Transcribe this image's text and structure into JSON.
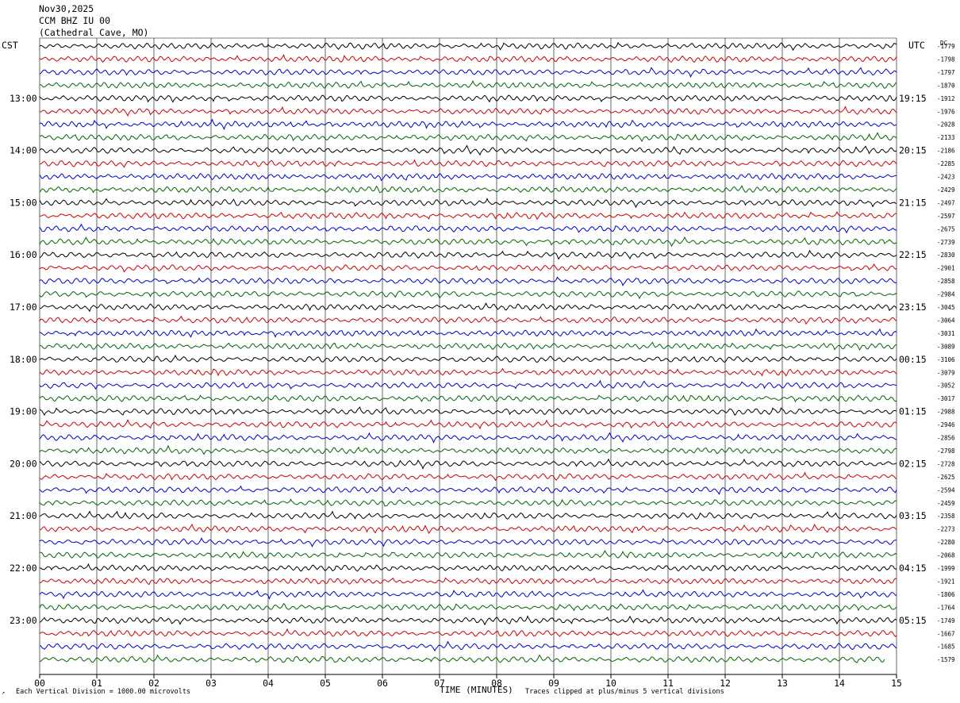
{
  "header": {
    "date": "Nov30,2025",
    "station": "CCM BHZ IU 00",
    "location": "(Cathedral Cave, MO)"
  },
  "left_zone_label": "CST",
  "right_zone_label": "UTC",
  "dc_label": "DC",
  "footer": {
    "scale_note": "Each Vertical Division = 1000.00 microvolts",
    "xlabel": "TIME (MINUTES)",
    "clip_note": "Traces clipped at plus/minus 5 vertical divisions"
  },
  "colors": {
    "trace_cycle": [
      "#000000",
      "#cc0000",
      "#0000cc",
      "#006600"
    ],
    "grid": "#000000",
    "background": "#ffffff"
  },
  "chart_data": {
    "type": "helicorder",
    "x": {
      "min": 0,
      "max": 15,
      "tick_labels": [
        "00",
        "01",
        "02",
        "03",
        "04",
        "05",
        "06",
        "07",
        "08",
        "09",
        "10",
        "11",
        "12",
        "13",
        "14",
        "15"
      ]
    },
    "rows_per_hour": 4,
    "left_hour_labels": [
      {
        "row": 4,
        "label": "13:00"
      },
      {
        "row": 8,
        "label": "14:00"
      },
      {
        "row": 12,
        "label": "15:00"
      },
      {
        "row": 16,
        "label": "16:00"
      },
      {
        "row": 20,
        "label": "17:00"
      },
      {
        "row": 24,
        "label": "18:00"
      },
      {
        "row": 28,
        "label": "19:00"
      },
      {
        "row": 32,
        "label": "20:00"
      },
      {
        "row": 36,
        "label": "21:00"
      },
      {
        "row": 40,
        "label": "22:00"
      },
      {
        "row": 44,
        "label": "23:00"
      }
    ],
    "right_hour_labels": [
      {
        "row": 4,
        "label": "19:15"
      },
      {
        "row": 8,
        "label": "20:15"
      },
      {
        "row": 12,
        "label": "21:15"
      },
      {
        "row": 16,
        "label": "22:15"
      },
      {
        "row": 20,
        "label": "23:15"
      },
      {
        "row": 24,
        "label": "00:15"
      },
      {
        "row": 28,
        "label": "01:15"
      },
      {
        "row": 32,
        "label": "02:15"
      },
      {
        "row": 36,
        "label": "03:15"
      },
      {
        "row": 40,
        "label": "04:15"
      },
      {
        "row": 44,
        "label": "05:15"
      }
    ],
    "dc_offsets": [
      "-1779",
      "-1798",
      "-1797",
      "-1870",
      "-1912",
      "-1976",
      "-2028",
      "-2133",
      "-2186",
      "-2285",
      "-2423",
      "-2429",
      "-2497",
      "-2597",
      "-2675",
      "-2739",
      "-2830",
      "-2901",
      "-2858",
      "-2984",
      "-3045",
      "-3064",
      "-3031",
      "-3089",
      "-3106",
      "-3079",
      "-3052",
      "-3017",
      "-2988",
      "-2946",
      "-2856",
      "-2798",
      "-2728",
      "-2625",
      "-2594",
      "-2459",
      "-2358",
      "-2273",
      "-2280",
      "-2068",
      "-1999",
      "-1921",
      "-1806",
      "-1764",
      "-1749",
      "-1667",
      "-1685",
      "-1579"
    ],
    "last_row_end_minute": 14.8
  }
}
